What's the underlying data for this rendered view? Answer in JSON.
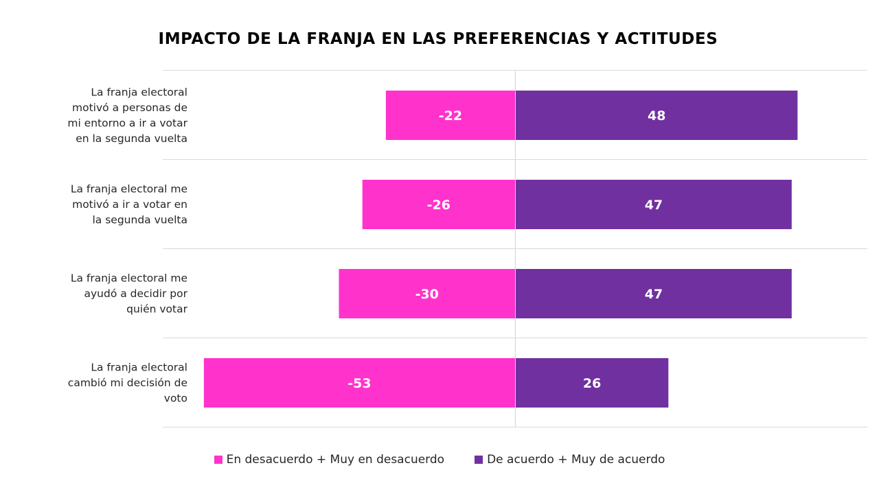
{
  "chart_data": {
    "type": "bar",
    "orientation": "horizontal",
    "stacked": "diverging",
    "title": "IMPACTO DE LA FRANJA EN LAS PREFERENCIAS Y ACTITUDES",
    "xlabel": "",
    "ylabel": "",
    "xlim": [
      -60,
      60
    ],
    "grid": true,
    "legend_position": "bottom",
    "categories": [
      [
        "La franja electoral",
        "motivó a personas de",
        "mi entorno a ir a votar",
        "en la segunda vuelta"
      ],
      [
        "La franja electoral me",
        "motivó a ir a votar en",
        "la segunda vuelta"
      ],
      [
        "La franja electoral me",
        "ayudó a decidir por",
        "quién votar"
      ],
      [
        "La franja electoral",
        "cambió mi decisión de",
        "voto"
      ]
    ],
    "series": [
      {
        "name": "En desacuerdo + Muy en desacuerdo",
        "color": "#FF33CC",
        "values": [
          -22,
          -26,
          -30,
          -53
        ]
      },
      {
        "name": "De acuerdo + Muy de acuerdo",
        "color": "#7030A0",
        "values": [
          48,
          47,
          47,
          26
        ]
      }
    ]
  }
}
